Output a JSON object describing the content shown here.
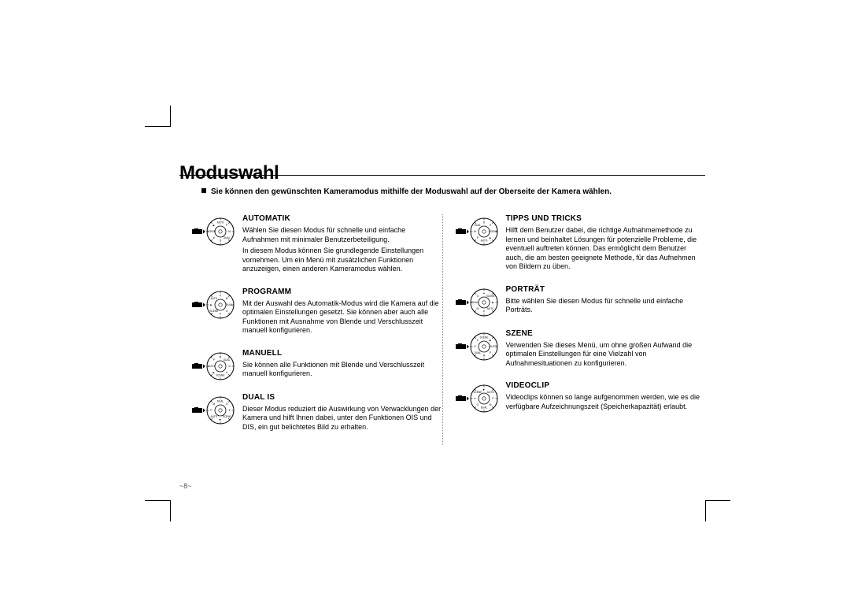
{
  "page": {
    "title": "Moduswahl",
    "intro": "Sie können den gewünschten Kameramodus mithilfe der Moduswahl auf der Oberseite der Kamera wählen.",
    "pageNumber": "~8~"
  },
  "dial": {
    "labels": [
      "AUTO",
      "P",
      "M",
      "DUAL",
      "G",
      "♥",
      "SCENE",
      "▶"
    ],
    "ring_fill": "#ffffff",
    "ring_stroke": "#000000",
    "tick_color": "#000000",
    "label_fontsize": 3.2,
    "pointer_fill": "#000000",
    "body_fill": "#000000"
  },
  "left": [
    {
      "title": "AUTOMATIK",
      "selectedIndex": 0,
      "paras": [
        "Wählen Sie diesen Modus für schnelle und einfache Aufnahmen mit minimaler Benutzerbeteiligung.",
        "In diesem Modus können Sie grundlegende Einstellungen vornehmen. Um ein Menü mit zusätzlichen Funktionen anzuzeigen, einen anderen Kameramodus wählen."
      ]
    },
    {
      "title": "PROGRAMM",
      "selectedIndex": 1,
      "paras": [
        "Mit der Auswahl des Automatik-Modus wird die Kamera auf die optimalen Einstellungen gesetzt. Sie können aber auch alle Funktionen mit Ausnahme von Blende und Verschlusszeit manuell konfigurieren."
      ]
    },
    {
      "title": "MANUELL",
      "selectedIndex": 2,
      "paras": [
        "Sie können alle Funktionen mit Blende und Verschlusszeit manuell konfigurieren."
      ]
    },
    {
      "title": "DUAL IS",
      "selectedIndex": 3,
      "paras": [
        "Dieser Modus reduziert die Auswirkung von Verwacklungen der Kamera und hilft Ihnen dabei, unter den Funktionen OIS und DIS, ein gut belichtetes Bild zu erhalten."
      ]
    }
  ],
  "right": [
    {
      "title": "TIPPS UND TRICKS",
      "selectedIndex": 4,
      "paras": [
        "Hilft dem Benutzer dabei, die richtige Aufnahmemethode zu lernen und beinhaltet Lösungen für potenzielle Probleme, die eventuell auftreten können. Das ermöglicht dem Benutzer auch, die am besten geeignete Methode, für das Aufnehmen von Bildern zu üben."
      ]
    },
    {
      "title": "PORTRÄT",
      "selectedIndex": 5,
      "paras": [
        "Bitte wählen Sie diesen Modus für schnelle und einfache Porträts."
      ]
    },
    {
      "title": "SZENE",
      "selectedIndex": 6,
      "paras": [
        "Verwenden Sie dieses Menü, um ohne großen Aufwand die optimalen Einstellungen für eine Vielzahl von Aufnahmesituationen zu konfigurieren."
      ]
    },
    {
      "title": "VIDEOCLIP",
      "selectedIndex": 7,
      "paras": [
        "Videoclips können so lange aufgenommen werden, wie es die verfügbare Aufzeichnungszeit (Speicherkapazität) erlaubt."
      ]
    }
  ]
}
